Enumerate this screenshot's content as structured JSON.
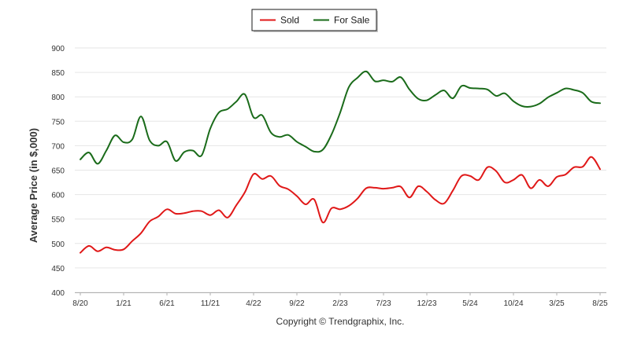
{
  "chart_data": {
    "type": "line",
    "xlabel": "",
    "ylabel": "Average Price (in $,000)",
    "ylim": [
      400,
      900
    ],
    "yticks": [
      400,
      450,
      500,
      550,
      600,
      650,
      700,
      750,
      800,
      850,
      900
    ],
    "xlim": [
      "2020-08",
      "2025-08"
    ],
    "xtick_labels": [
      "8/20",
      "1/21",
      "6/21",
      "11/21",
      "4/22",
      "9/22",
      "2/23",
      "7/23",
      "12/23",
      "5/24",
      "10/24",
      "3/25",
      "8/25"
    ],
    "grid": "horizontal",
    "legend_position": "top-center",
    "series": [
      {
        "name": "Sold",
        "color": "#e01818",
        "x": [
          "2020-08",
          "2020-09",
          "2020-10",
          "2020-11",
          "2020-12",
          "2021-01",
          "2021-02",
          "2021-03",
          "2021-04",
          "2021-05",
          "2021-06",
          "2021-07",
          "2021-08",
          "2021-09",
          "2021-10",
          "2021-11",
          "2021-12",
          "2022-01",
          "2022-02",
          "2022-03",
          "2022-04",
          "2022-05",
          "2022-06",
          "2022-07",
          "2022-08",
          "2022-09",
          "2022-10",
          "2022-11",
          "2022-12",
          "2023-01",
          "2023-02",
          "2023-03",
          "2023-04",
          "2023-05",
          "2023-06",
          "2023-07",
          "2023-08",
          "2023-09",
          "2023-10",
          "2023-11",
          "2023-12",
          "2024-01",
          "2024-02",
          "2024-03",
          "2024-04",
          "2024-05",
          "2024-06",
          "2024-07",
          "2024-08",
          "2024-09",
          "2024-10",
          "2024-11",
          "2024-12",
          "2025-01",
          "2025-02",
          "2025-03",
          "2025-04",
          "2025-05",
          "2025-06",
          "2025-07",
          "2025-08"
        ],
        "values": [
          481,
          495,
          484,
          492,
          487,
          488,
          505,
          521,
          545,
          555,
          570,
          561,
          562,
          566,
          566,
          558,
          568,
          553,
          578,
          605,
          642,
          632,
          638,
          618,
          611,
          597,
          580,
          590,
          543,
          572,
          570,
          577,
          592,
          613,
          614,
          612,
          614,
          616,
          594,
          617,
          606,
          589,
          582,
          608,
          638,
          638,
          630,
          656,
          648,
          625,
          630,
          640,
          613,
          630,
          617,
          636,
          641,
          656,
          657,
          677,
          652
        ]
      },
      {
        "name": "For Sale",
        "color": "#1a6b1a",
        "x": [
          "2020-08",
          "2020-09",
          "2020-10",
          "2020-11",
          "2020-12",
          "2021-01",
          "2021-02",
          "2021-03",
          "2021-04",
          "2021-05",
          "2021-06",
          "2021-07",
          "2021-08",
          "2021-09",
          "2021-10",
          "2021-11",
          "2021-12",
          "2022-01",
          "2022-02",
          "2022-03",
          "2022-04",
          "2022-05",
          "2022-06",
          "2022-07",
          "2022-08",
          "2022-09",
          "2022-10",
          "2022-11",
          "2022-12",
          "2023-01",
          "2023-02",
          "2023-03",
          "2023-04",
          "2023-05",
          "2023-06",
          "2023-07",
          "2023-08",
          "2023-09",
          "2023-10",
          "2023-11",
          "2023-12",
          "2024-01",
          "2024-02",
          "2024-03",
          "2024-04",
          "2024-05",
          "2024-06",
          "2024-07",
          "2024-08",
          "2024-09",
          "2024-10",
          "2024-11",
          "2024-12",
          "2025-01",
          "2025-02",
          "2025-03",
          "2025-04",
          "2025-05",
          "2025-06",
          "2025-07",
          "2025-08"
        ],
        "values": [
          672,
          686,
          663,
          690,
          721,
          707,
          713,
          760,
          711,
          700,
          708,
          669,
          687,
          690,
          680,
          735,
          768,
          775,
          790,
          805,
          758,
          762,
          727,
          718,
          722,
          708,
          698,
          688,
          692,
          723,
          768,
          820,
          839,
          852,
          832,
          834,
          831,
          840,
          815,
          796,
          793,
          804,
          813,
          797,
          822,
          818,
          817,
          815,
          802,
          807,
          791,
          781,
          780,
          786,
          799,
          808,
          817,
          814,
          808,
          790,
          787
        ]
      }
    ],
    "footer": "Copyright © Trendgraphix, Inc."
  }
}
